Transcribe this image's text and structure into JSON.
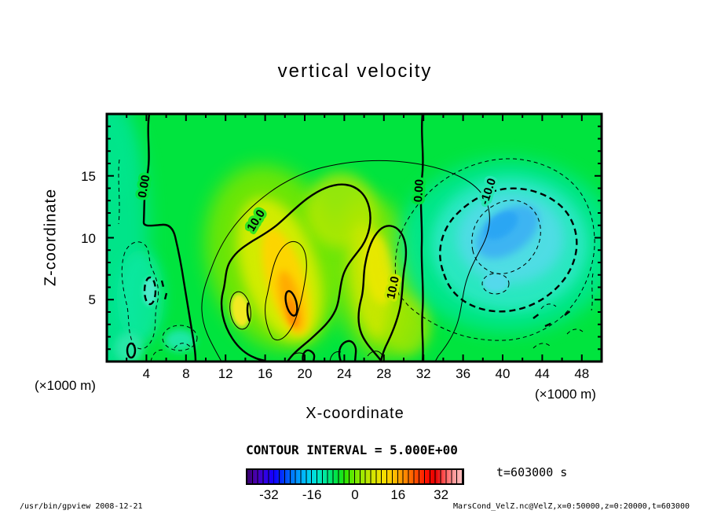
{
  "title": "vertical velocity",
  "axes": {
    "x_label": "X-coordinate",
    "z_label": "Z-coordinate",
    "x_unit": "(×1000 m)",
    "z_unit": "(×1000 m)"
  },
  "chart_data": {
    "type": "heatmap",
    "subtype": "filled-contour",
    "variable": "vertical velocity (VelZ)",
    "title": "vertical velocity",
    "xlabel": "X-coordinate (×1000 m)",
    "ylabel": "Z-coordinate (×1000 m)",
    "x_range": [
      0,
      50
    ],
    "z_range": [
      0,
      20
    ],
    "x_major_ticks": [
      4,
      8,
      12,
      16,
      20,
      24,
      28,
      32,
      36,
      40,
      44,
      48
    ],
    "x_minor_step": 2,
    "z_major_ticks": [
      5,
      10,
      15
    ],
    "z_minor_step": 1,
    "contour_interval_text": "CONTOUR INTERVAL = 5.000E+00",
    "contour_interval_value": 5.0,
    "contour_line_labels": [
      "0.00",
      "10.0",
      "0.00",
      "-10.0",
      "10.0"
    ],
    "features": {
      "zero_contour_x_km": [
        8,
        32
      ],
      "updraft_core": {
        "x_km": 17,
        "z_km": 9,
        "peak_value": 22
      },
      "secondary_updraft": {
        "x_km": 27,
        "z_km": 9,
        "peak_value": 16
      },
      "downdraft_core": {
        "x_km": 41,
        "z_km": 10,
        "peak_value": -17
      },
      "background_value": 0
    },
    "background_tone": "#00e43e",
    "colorbar": {
      "min": -40,
      "max": 40,
      "cell_step": 2,
      "ticks": [
        -32,
        -16,
        0,
        16,
        32
      ],
      "colors": [
        "#38006e",
        "#4b00b4",
        "#3000e6",
        "#1000ff",
        "#0038ff",
        "#0078ff",
        "#00acff",
        "#00d4ee",
        "#00e8c4",
        "#00e884",
        "#00e43c",
        "#30e600",
        "#74e800",
        "#a8e800",
        "#d4e400",
        "#f2e200",
        "#ffcc00",
        "#ffa200",
        "#ff7600",
        "#ff4200",
        "#ff0e00",
        "#e60000",
        "#ff5a5a",
        "#ff9a9a",
        "#ffc0c0"
      ],
      "legend_position": "bottom"
    }
  },
  "annotations": {
    "time": "t=603000 s"
  },
  "footer": {
    "left": "/usr/bin/gpview  2008-12-21",
    "right": "MarsCond_VelZ.nc@VelZ,x=0:50000,z=0:20000,t=603000"
  }
}
